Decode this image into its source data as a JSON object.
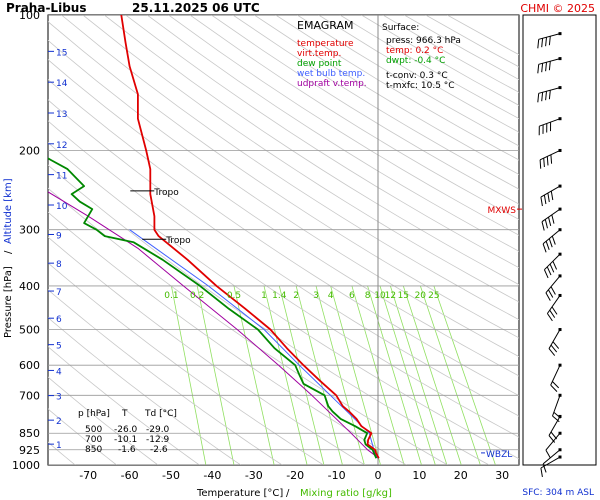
{
  "header": {
    "station": "Praha-Libus",
    "datetime": "25.11.2025 06 UTC",
    "copyright": "CHMI © 2025"
  },
  "legend": {
    "title": "EMAGRAM",
    "items": [
      {
        "label": "temperature",
        "color": "#e00000"
      },
      {
        "label": "virt.temp.",
        "color": "#e00000"
      },
      {
        "label": "dew point",
        "color": "#00a000"
      },
      {
        "label": "wet bulb temp.",
        "color": "#4060ff"
      },
      {
        "label": "udpraft v.temp.",
        "color": "#a000a0"
      }
    ]
  },
  "surface": {
    "title": "Surface:",
    "press": "press: 966.3 hPa",
    "temp": "temp: 0.2 °C",
    "dwpt": "dwpt: -0.4 °C",
    "tconv": "t-conv: 0.3 °C",
    "tmxfc": "t-mxfc: 10.5 °C"
  },
  "table": {
    "headers": [
      "p [hPa]",
      "T",
      "Td [°C]"
    ],
    "rows": [
      [
        "500",
        "-26.0",
        "-29.0"
      ],
      [
        "700",
        "-10.1",
        "-12.9"
      ],
      [
        "850",
        "-1.6",
        "-2.6"
      ]
    ]
  },
  "markers": {
    "tropo": "Tropo",
    "mxws": "MXWS",
    "wbzl": "WBZL"
  },
  "footer": {
    "sfc": "SFC: 304 m ASL"
  },
  "chart_data": {
    "type": "line",
    "xlabel": "Temperature [°C]",
    "xlabel_sep": "/",
    "xlabel2": "Mixing ratio [g/kg]",
    "ylabel": "Pressure [hPa]",
    "ylabel_sep": "/",
    "ylabel2": "Altitude [km]",
    "xlim": [
      -80,
      30
    ],
    "ylim": [
      1000,
      100
    ],
    "y_scale": "log",
    "x_ticks": [
      "-70",
      "-60",
      "-50",
      "-40",
      "-30",
      "-20",
      "-10",
      "0",
      "10",
      "20",
      "30"
    ],
    "p_ticks": [
      "100",
      "200",
      "300",
      "400",
      "500",
      "600",
      "700",
      "850",
      "925",
      "1000"
    ],
    "km_ticks": [
      "1",
      "2",
      "3",
      "4",
      "5",
      "6",
      "7",
      "8",
      "9",
      "10",
      "11",
      "12",
      "13",
      "14",
      "15"
    ],
    "mixing_ratio_labels": [
      "0.1",
      "0.2",
      "0.5",
      "1",
      "1.4",
      "2",
      "3",
      "4",
      "6",
      "8",
      "10",
      "12",
      "15",
      "20",
      "25"
    ],
    "colors": {
      "temperature": "#e00000",
      "dewpoint": "#008800",
      "wetbulb": "#4060ff",
      "parcel": "#a000a0",
      "grid": "#999999",
      "dry_adiabat": "#c8c8c8",
      "mixing_ratio": "#90e060"
    },
    "series": [
      {
        "name": "temperature",
        "points": [
          [
            966,
            0.2
          ],
          [
            940,
            -0.5
          ],
          [
            925,
            -0.7
          ],
          [
            900,
            -2.5
          ],
          [
            880,
            -2.4
          ],
          [
            850,
            -1.6
          ],
          [
            820,
            -4
          ],
          [
            790,
            -5.2
          ],
          [
            760,
            -7
          ],
          [
            740,
            -8.5
          ],
          [
            700,
            -10.1
          ],
          [
            650,
            -14
          ],
          [
            600,
            -18
          ],
          [
            550,
            -22
          ],
          [
            500,
            -26
          ],
          [
            450,
            -32
          ],
          [
            400,
            -39
          ],
          [
            350,
            -46
          ],
          [
            310,
            -53
          ],
          [
            300,
            -54
          ],
          [
            280,
            -54
          ],
          [
            250,
            -55
          ],
          [
            220,
            -55
          ],
          [
            200,
            -56
          ],
          [
            170,
            -58
          ],
          [
            150,
            -58
          ],
          [
            130,
            -60
          ],
          [
            115,
            -61
          ],
          [
            100,
            -62
          ]
        ]
      },
      {
        "name": "dew point",
        "points": [
          [
            966,
            -0.4
          ],
          [
            940,
            -1
          ],
          [
            925,
            -1.3
          ],
          [
            900,
            -3
          ],
          [
            880,
            -3.3
          ],
          [
            850,
            -2.6
          ],
          [
            820,
            -5.5
          ],
          [
            790,
            -9
          ],
          [
            760,
            -11
          ],
          [
            740,
            -12
          ],
          [
            700,
            -12.9
          ],
          [
            660,
            -18
          ],
          [
            630,
            -19
          ],
          [
            600,
            -20
          ],
          [
            550,
            -25
          ],
          [
            500,
            -29
          ],
          [
            450,
            -36
          ],
          [
            400,
            -43
          ],
          [
            350,
            -52
          ],
          [
            320,
            -59
          ],
          [
            310,
            -66
          ],
          [
            300,
            -68
          ],
          [
            290,
            -71
          ],
          [
            270,
            -69
          ],
          [
            260,
            -72
          ],
          [
            250,
            -74
          ],
          [
            240,
            -71
          ],
          [
            220,
            -75
          ],
          [
            210,
            -79
          ],
          [
            205,
            -81
          ]
        ]
      },
      {
        "name": "wet bulb temp.",
        "points": [
          [
            966,
            -0.1
          ],
          [
            925,
            -1
          ],
          [
            850,
            -2.1
          ],
          [
            700,
            -11.5
          ],
          [
            600,
            -19
          ],
          [
            500,
            -27.5
          ],
          [
            400,
            -41
          ],
          [
            300,
            -60
          ]
        ]
      },
      {
        "name": "udpraft v.temp.",
        "points": [
          [
            966,
            0.2
          ],
          [
            925,
            -2.5
          ],
          [
            850,
            -6.5
          ],
          [
            700,
            -16
          ],
          [
            600,
            -24
          ],
          [
            500,
            -34
          ],
          [
            400,
            -47
          ],
          [
            330,
            -58
          ],
          [
            280,
            -70
          ],
          [
            240,
            -82
          ]
        ]
      }
    ],
    "tropopause_hpa": [
      246,
      315
    ],
    "mxws_hpa": 270,
    "wbzl_hpa": 940,
    "wind_levels_hpa": [
      960,
      925,
      850,
      780,
      700,
      600,
      500,
      420,
      380,
      340,
      300,
      270,
      240,
      200,
      170,
      145,
      125,
      110
    ]
  }
}
